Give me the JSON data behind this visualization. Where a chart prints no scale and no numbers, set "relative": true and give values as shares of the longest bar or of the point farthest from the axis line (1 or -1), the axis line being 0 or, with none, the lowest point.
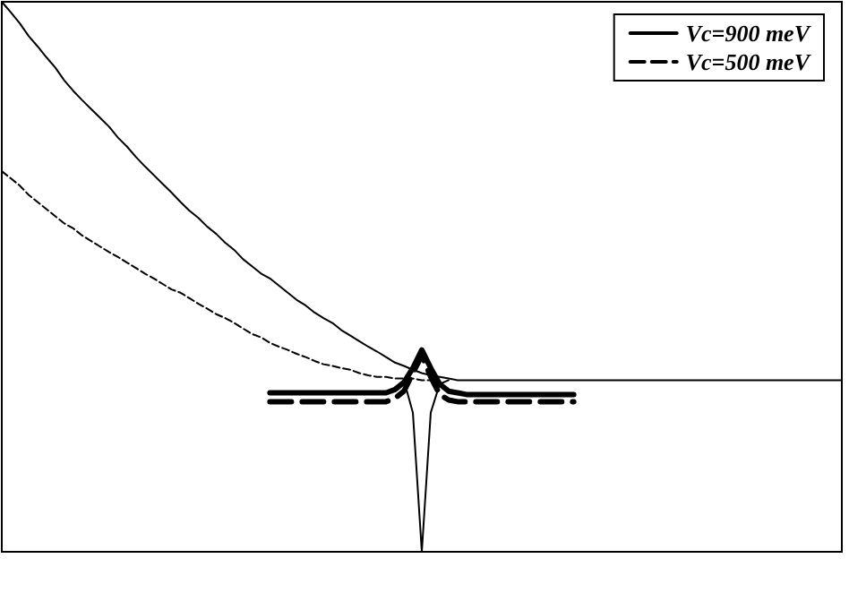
{
  "chart_data": {
    "type": "line",
    "relative": true,
    "tick_labels": false,
    "legend": "top right",
    "grid": false,
    "categories": [
      null,
      null,
      null,
      null,
      null,
      null,
      null,
      null,
      null,
      null,
      null,
      null,
      null,
      null,
      null,
      null,
      null,
      null,
      null,
      null,
      null,
      null,
      null,
      null,
      null,
      null,
      null,
      null,
      null,
      null,
      null,
      null,
      null,
      null,
      null,
      null,
      null,
      null,
      null,
      null,
      null,
      null,
      null,
      null,
      null,
      null,
      null,
      null,
      null,
      null,
      null,
      null,
      null,
      null,
      null,
      null,
      null,
      null,
      null,
      null,
      null,
      null,
      null,
      null,
      null,
      null,
      null,
      null,
      null,
      null,
      null,
      null,
      null,
      null,
      null,
      null,
      null,
      null,
      null,
      null,
      null,
      null,
      null,
      null,
      null,
      null,
      null,
      null,
      null,
      null,
      null,
      null,
      null,
      null,
      null
    ],
    "series": [
      {
        "name": "Vc=900 meV",
        "color": "#000000",
        "line_style": "solid",
        "values": [
          1.0,
          0.981,
          0.961,
          0.938,
          0.919,
          0.899,
          0.88,
          0.857,
          0.838,
          0.821,
          0.805,
          0.789,
          0.773,
          0.753,
          0.737,
          0.718,
          0.701,
          0.685,
          0.669,
          0.653,
          0.636,
          0.62,
          0.607,
          0.591,
          0.578,
          0.562,
          0.549,
          0.532,
          0.519,
          0.506,
          0.497,
          0.484,
          0.471,
          0.458,
          0.448,
          0.435,
          0.425,
          0.416,
          0.403,
          0.393,
          0.383,
          0.373,
          0.364,
          0.354,
          0.344,
          0.338,
          0.331,
          0.325,
          0.321,
          0.318,
          0.315,
          0.312,
          0.312,
          0.312,
          0.312,
          0.312,
          0.312,
          0.312,
          0.312,
          0.312,
          0.312,
          0.312,
          0.312,
          0.312,
          0.312,
          0.312,
          0.312,
          0.312,
          0.312,
          0.312,
          0.312,
          0.312,
          0.312,
          0.312,
          0.312,
          0.312,
          0.312,
          0.312,
          0.312,
          0.312,
          0.312,
          0.312,
          0.312,
          0.312,
          0.312,
          0.312,
          0.312,
          0.312,
          0.312,
          0.312,
          0.312,
          0.312,
          0.312,
          0.312,
          0.312
        ]
      },
      {
        "name": "Vc=500 meV",
        "color": "#000000",
        "line_style": "dashed",
        "values": [
          0.692,
          0.679,
          0.666,
          0.649,
          0.636,
          0.623,
          0.61,
          0.597,
          0.588,
          0.575,
          0.565,
          0.555,
          0.545,
          0.536,
          0.526,
          0.516,
          0.506,
          0.497,
          0.487,
          0.477,
          0.471,
          0.461,
          0.451,
          0.442,
          0.432,
          0.425,
          0.416,
          0.406,
          0.396,
          0.39,
          0.38,
          0.373,
          0.367,
          0.36,
          0.354,
          0.347,
          0.341,
          0.338,
          0.334,
          0.331,
          0.325,
          0.321,
          0.318,
          0.318,
          0.315,
          0.315,
          0.315,
          0.312,
          0.312,
          null,
          null,
          null,
          null,
          null,
          null,
          null,
          null,
          null,
          null,
          null,
          null,
          null,
          null,
          null,
          null,
          null,
          null,
          null,
          null,
          null,
          null,
          null,
          null,
          null,
          null,
          null,
          null,
          null,
          null,
          null,
          null,
          null,
          null,
          null,
          null,
          null,
          null,
          null,
          null,
          null,
          null,
          null,
          null,
          null,
          null
        ]
      },
      {
        "color": "#000000",
        "line_style": "solid",
        "values": [
          null,
          null,
          null,
          null,
          null,
          null,
          null,
          null,
          null,
          null,
          null,
          null,
          null,
          null,
          null,
          null,
          null,
          null,
          null,
          null,
          null,
          null,
          null,
          null,
          null,
          null,
          null,
          null,
          null,
          null,
          0.289,
          0.289,
          0.289,
          0.289,
          0.289,
          0.289,
          0.289,
          0.289,
          0.289,
          0.289,
          0.289,
          0.289,
          0.289,
          0.289,
          0.295,
          0.308,
          0.334,
          0.367,
          0.334,
          0.305,
          0.292,
          0.289,
          0.286,
          0.286,
          0.286,
          0.286,
          0.286,
          0.286,
          0.286,
          0.286,
          0.286,
          0.286,
          0.286,
          0.286,
          0.286,
          null,
          null,
          null,
          null,
          null,
          null,
          null,
          null,
          null,
          null,
          null,
          null,
          null,
          null,
          null,
          null,
          null,
          null,
          null,
          null,
          null,
          null,
          null,
          null,
          null,
          null,
          null,
          null,
          null,
          null
        ]
      },
      {
        "color": "#000000",
        "line_style": "dashed",
        "values": [
          null,
          null,
          null,
          null,
          null,
          null,
          null,
          null,
          null,
          null,
          null,
          null,
          null,
          null,
          null,
          null,
          null,
          null,
          null,
          null,
          null,
          null,
          null,
          null,
          null,
          null,
          null,
          null,
          null,
          null,
          0.273,
          0.273,
          0.273,
          0.273,
          0.273,
          0.273,
          0.273,
          0.273,
          0.273,
          0.273,
          0.273,
          0.273,
          0.273,
          0.273,
          0.279,
          0.292,
          0.325,
          0.357,
          0.318,
          0.286,
          0.276,
          0.273,
          0.273,
          0.273,
          0.273,
          0.273,
          0.273,
          0.273,
          0.273,
          0.273,
          0.273,
          0.273,
          0.273,
          0.273,
          0.273,
          null,
          null,
          null,
          null,
          null,
          null,
          null,
          null,
          null,
          null,
          null,
          null,
          null,
          null,
          null,
          null,
          null,
          null,
          null,
          null,
          null,
          null,
          null,
          null,
          null,
          null,
          null,
          null,
          null,
          null
        ]
      },
      {
        "color": "#000000",
        "line_style": "solid",
        "values": [
          null,
          null,
          null,
          null,
          null,
          null,
          null,
          null,
          null,
          null,
          null,
          null,
          null,
          null,
          null,
          null,
          null,
          null,
          null,
          null,
          null,
          null,
          null,
          null,
          null,
          null,
          null,
          null,
          null,
          null,
          null,
          null,
          null,
          null,
          null,
          null,
          null,
          null,
          null,
          null,
          null,
          null,
          null,
          null,
          0.299,
          0.312,
          0.253,
          0.0,
          0.253,
          0.305,
          0.312,
          null,
          null,
          null,
          null,
          null,
          null,
          null,
          null,
          null,
          null,
          null,
          null,
          null,
          null,
          null,
          null,
          null,
          null,
          null,
          null,
          null,
          null,
          null,
          null,
          null,
          null,
          null,
          null,
          null,
          null,
          null,
          null,
          null,
          null,
          null,
          null,
          null,
          null,
          null,
          null,
          null,
          null,
          null,
          null
        ]
      }
    ]
  }
}
